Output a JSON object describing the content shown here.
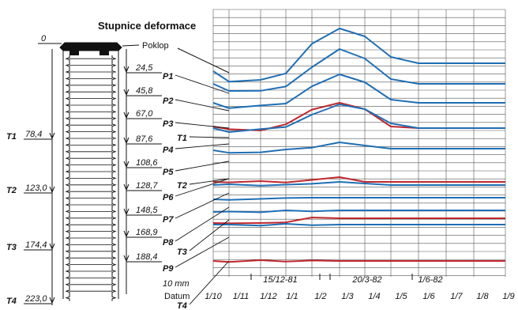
{
  "title": "Stupnice deformace",
  "poklop_label": "Poklop",
  "scale_label": "10 mm",
  "datum_label": "Datum",
  "zero_label": "0",
  "x_ticks": [
    "1/10",
    "1/11",
    "1/12",
    "1/1",
    "1/2",
    "1/3",
    "1/4",
    "1/5",
    "1/6",
    "1/7",
    "1/8",
    "1/9"
  ],
  "date_markers": [
    "15/12-81",
    "20/3-82",
    "1/6-82"
  ],
  "right_depths": [
    "24,5",
    "45,8",
    "67,0",
    "87,6",
    "108,6",
    "128,7",
    "148,5",
    "168,9",
    "188,4"
  ],
  "left_depths": [
    {
      "code": "T1",
      "depth": "78,4"
    },
    {
      "code": "T2",
      "depth": "123,0"
    },
    {
      "code": "T3",
      "depth": "174,4"
    },
    {
      "code": "T4",
      "depth": "223,0"
    }
  ],
  "sensor_labels": [
    "P1",
    "P2",
    "P3",
    "T1",
    "P4",
    "P5",
    "T2",
    "P6",
    "P7",
    "P8",
    "T3",
    "P9",
    "T4"
  ],
  "colors": {
    "p_series": "#1f6fb5",
    "t_series": "#c0282d",
    "ink": "#111111"
  },
  "chart_data": {
    "type": "line",
    "xlabel": "Datum",
    "x_categories": [
      "1/10",
      "1/11",
      "1/12",
      "1/1",
      "1/2",
      "1/3",
      "1/4",
      "1/5",
      "1/6",
      "1/7",
      "1/8",
      "1/9"
    ],
    "series": [
      {
        "name": "P1",
        "values": [
          0,
          -6,
          -6,
          -1,
          17,
          27,
          22,
          9,
          5,
          5,
          5,
          5
        ]
      },
      {
        "name": "P2",
        "values": [
          0,
          -5,
          -4,
          -2,
          11,
          22,
          16,
          3,
          0,
          0,
          0,
          0
        ]
      },
      {
        "name": "P3",
        "values": [
          0,
          -3,
          -2,
          0,
          10,
          18,
          13,
          2,
          0,
          0,
          0,
          0
        ]
      },
      {
        "name": "T1",
        "values": [
          0,
          -2,
          -2,
          1,
          11,
          15,
          11,
          0,
          -1,
          -1,
          -1,
          -1
        ]
      },
      {
        "name": "P4",
        "values": [
          0,
          -2,
          -1,
          1,
          8,
          15,
          12,
          3,
          0,
          0,
          0,
          0
        ]
      },
      {
        "name": "P5",
        "values": [
          0,
          -2,
          -1,
          0,
          2,
          5,
          3,
          1,
          1,
          1,
          1,
          1
        ]
      },
      {
        "name": "T2",
        "values": [
          0,
          0,
          0,
          0,
          1,
          3,
          0,
          0,
          0,
          0,
          0,
          0
        ]
      },
      {
        "name": "P6",
        "values": [
          0,
          0,
          0,
          0,
          1,
          2,
          1,
          0,
          0,
          0,
          0,
          0
        ]
      },
      {
        "name": "P7",
        "values": [
          0,
          0,
          0,
          1,
          1,
          1,
          1,
          1,
          1,
          1,
          1,
          1
        ]
      },
      {
        "name": "P8",
        "values": [
          0,
          0,
          0,
          1,
          1,
          1,
          1,
          1,
          1,
          1,
          1,
          1
        ]
      },
      {
        "name": "T3",
        "values": [
          0,
          0,
          0,
          1,
          3,
          3,
          3,
          3,
          3,
          3,
          3,
          3
        ]
      },
      {
        "name": "P9",
        "values": [
          0,
          0,
          0,
          0,
          0,
          0,
          0,
          0,
          0,
          0,
          0,
          0
        ]
      },
      {
        "name": "T4",
        "values": [
          0,
          0,
          0,
          0,
          0,
          0,
          0,
          0,
          0,
          0,
          0,
          0
        ]
      }
    ]
  }
}
